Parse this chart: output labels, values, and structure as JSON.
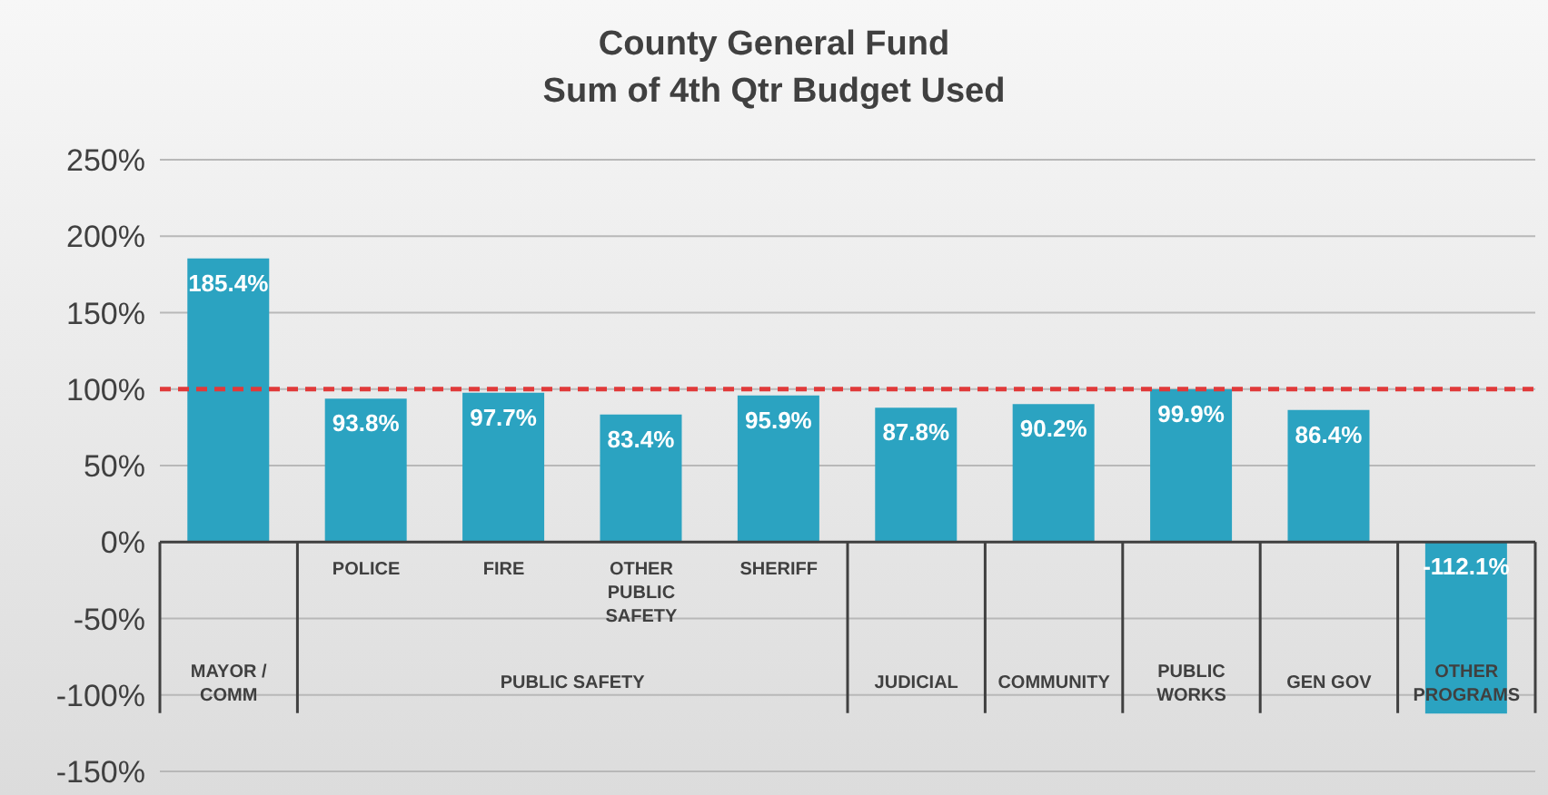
{
  "chart_data": {
    "type": "bar",
    "title": "County General Fund",
    "subtitle": "Sum of 4th Qtr Budget Used",
    "categories": [
      "MAYOR / COMM",
      "POLICE",
      "FIRE",
      "OTHER PUBLIC SAFETY",
      "SHERIFF",
      "JUDICIAL",
      "COMMUNITY",
      "PUBLIC WORKS",
      "GEN GOV",
      "OTHER PROGRAMS"
    ],
    "values": [
      185.4,
      93.8,
      97.7,
      83.4,
      95.9,
      87.8,
      90.2,
      99.9,
      86.4,
      -112.1
    ],
    "color": "#2ba3c1",
    "ylim": [
      -150,
      250
    ],
    "yticks": [
      {
        "value": -150,
        "label": "-150%"
      },
      {
        "value": -100,
        "label": "-100%"
      },
      {
        "value": -50,
        "label": "-50%"
      },
      {
        "value": 0,
        "label": "0%"
      },
      {
        "value": 50,
        "label": "50%"
      },
      {
        "value": 100,
        "label": "100%"
      },
      {
        "value": 150,
        "label": "150%"
      },
      {
        "value": 200,
        "label": "200%"
      },
      {
        "value": 250,
        "label": "250%"
      }
    ],
    "value_labels": [
      "185.4%",
      "93.8%",
      "97.7%",
      "83.4%",
      "95.9%",
      "87.8%",
      "90.2%",
      "99.9%",
      "86.4%",
      "-112.1%"
    ],
    "grid": "y",
    "ref_lines": [
      {
        "axis": "y",
        "value": 100,
        "color": "#e03a3a",
        "line_style": "dashed"
      }
    ],
    "annotations": [
      "PUBLIC SAFETY"
    ]
  }
}
